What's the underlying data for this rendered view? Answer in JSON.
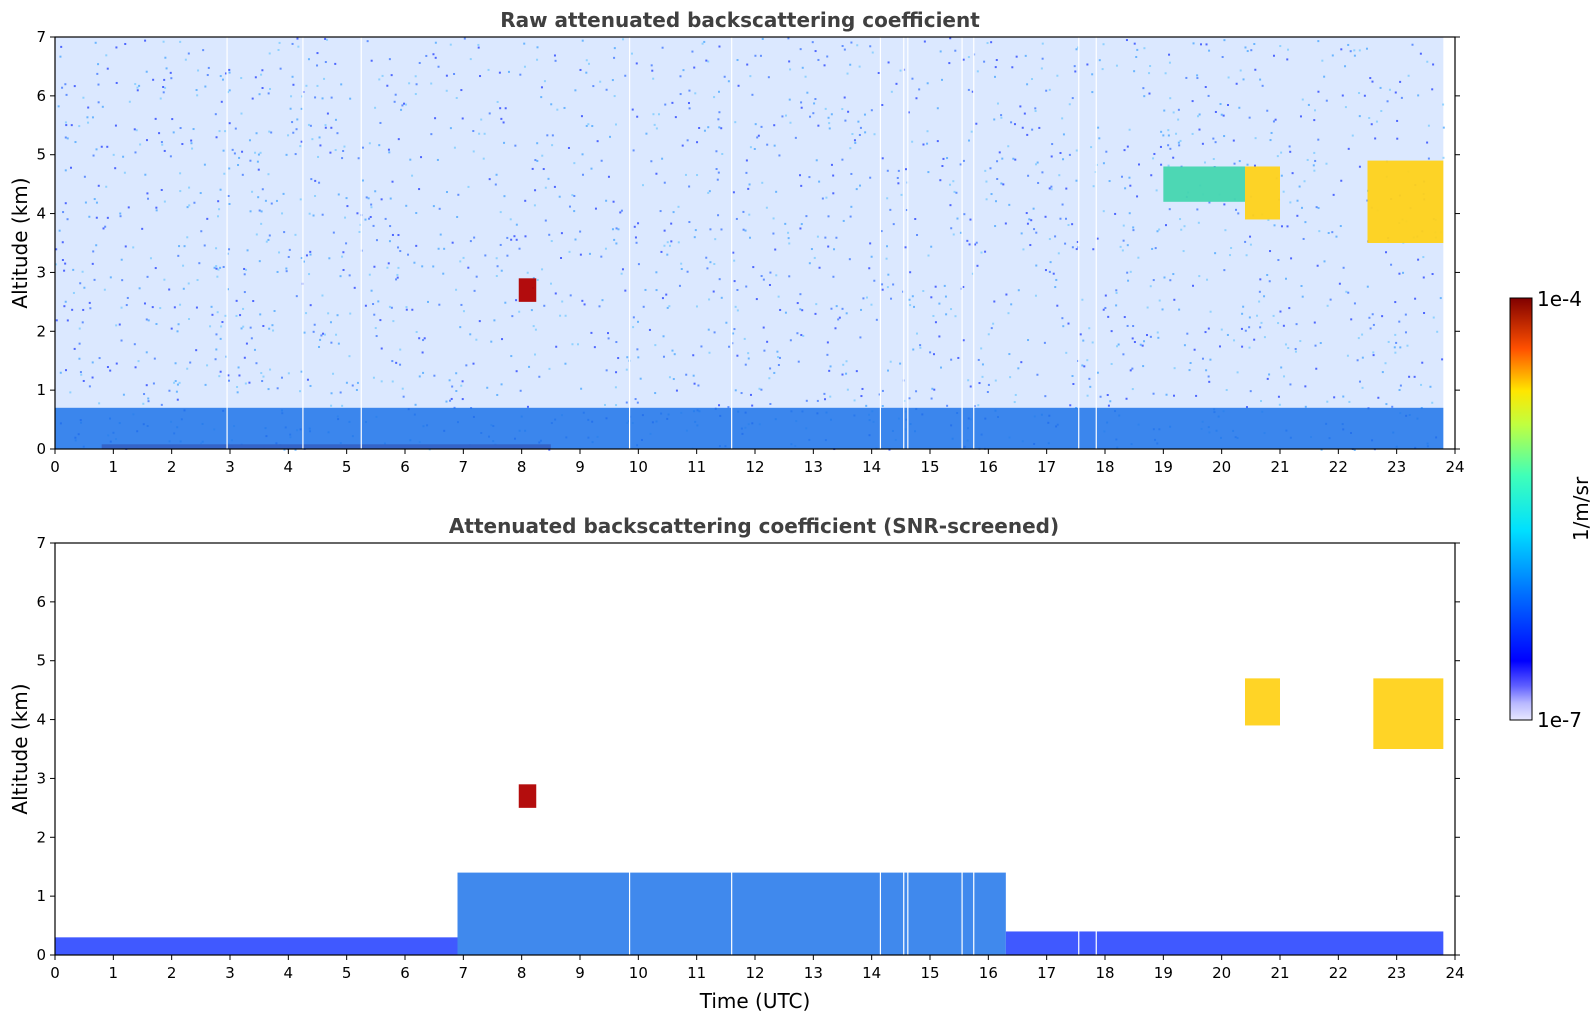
{
  "chart_data": [
    {
      "type": "heatmap",
      "title": "Raw attenuated backscattering coefficient",
      "xlabel": "",
      "ylabel": "Altitude (km)",
      "xlim": [
        0,
        24
      ],
      "ylim": [
        0,
        7
      ],
      "xticks": [
        "0",
        "1",
        "2",
        "3",
        "4",
        "5",
        "6",
        "7",
        "8",
        "9",
        "10",
        "11",
        "12",
        "13",
        "14",
        "15",
        "16",
        "17",
        "18",
        "19",
        "20",
        "21",
        "22",
        "23",
        "24"
      ],
      "yticks": [
        "0",
        "1",
        "2",
        "3",
        "4",
        "5",
        "6",
        "7"
      ],
      "data_end_hour": 23.8,
      "missing_profiles_hours": [
        2.95,
        4.25,
        5.25,
        9.85,
        11.6,
        14.15,
        14.55,
        14.62,
        15.55,
        15.75,
        17.55,
        17.85
      ],
      "regions": [
        {
          "feature": "surface high-backscatter layer",
          "x": [
            0.8,
            8.5
          ],
          "y": [
            0,
            0.08
          ],
          "level": "very high"
        },
        {
          "feature": "boundary layer aerosol",
          "x": [
            0,
            23.8
          ],
          "y": [
            0,
            0.7
          ],
          "level": "medium-low"
        },
        {
          "feature": "thin cloud",
          "x": [
            7.95,
            8.25
          ],
          "y": [
            2.5,
            2.9
          ],
          "level": "very high"
        },
        {
          "feature": "cloud",
          "x": [
            20.4,
            21.0
          ],
          "y": [
            3.9,
            4.8
          ],
          "level": "high"
        },
        {
          "feature": "cloud",
          "x": [
            22.5,
            23.8
          ],
          "y": [
            3.5,
            4.9
          ],
          "level": "high"
        },
        {
          "feature": "faint aerosol layer",
          "x": [
            19.0,
            20.4
          ],
          "y": [
            4.2,
            4.8
          ],
          "level": "medium"
        }
      ]
    },
    {
      "type": "heatmap",
      "title": "Attenuated backscattering coefficient (SNR-screened)",
      "xlabel": "Time (UTC)",
      "ylabel": "Altitude (km)",
      "xlim": [
        0,
        24
      ],
      "ylim": [
        0,
        7
      ],
      "xticks": [
        "0",
        "1",
        "2",
        "3",
        "4",
        "5",
        "6",
        "7",
        "8",
        "9",
        "10",
        "11",
        "12",
        "13",
        "14",
        "15",
        "16",
        "17",
        "18",
        "19",
        "20",
        "21",
        "22",
        "23",
        "24"
      ],
      "yticks": [
        "0",
        "1",
        "2",
        "3",
        "4",
        "5",
        "6",
        "7"
      ],
      "data_end_hour": 23.8,
      "missing_profiles_hours": [
        9.85,
        11.6,
        14.15,
        14.55,
        14.62,
        15.55,
        15.75,
        17.55,
        17.85
      ],
      "regions": [
        {
          "feature": "shallow boundary layer",
          "x": [
            0,
            6.9
          ],
          "y": [
            0,
            0.3
          ],
          "level": "low"
        },
        {
          "feature": "boundary layer aerosol",
          "x": [
            6.9,
            16.3
          ],
          "y": [
            0,
            1.4
          ],
          "level": "medium-low"
        },
        {
          "feature": "boundary layer aerosol",
          "x": [
            16.3,
            23.8
          ],
          "y": [
            0,
            0.4
          ],
          "level": "low"
        },
        {
          "feature": "thin cloud",
          "x": [
            7.95,
            8.25
          ],
          "y": [
            2.5,
            2.9
          ],
          "level": "very high"
        },
        {
          "feature": "cloud",
          "x": [
            20.4,
            21.0
          ],
          "y": [
            3.9,
            4.7
          ],
          "level": "high"
        },
        {
          "feature": "cloud",
          "x": [
            22.6,
            23.8
          ],
          "y": [
            3.5,
            4.7
          ],
          "level": "high"
        }
      ]
    }
  ],
  "colorbar": {
    "label": "1/m/sr",
    "max_label": "1e-4",
    "min_label": "1e-7",
    "scale": "log",
    "colormap": "jet"
  }
}
